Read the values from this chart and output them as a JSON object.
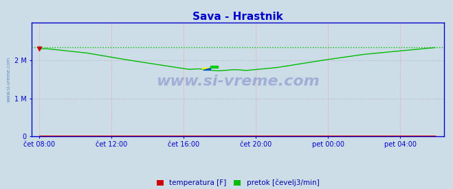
{
  "title": "Sava - Hrastnik",
  "title_color": "#0000cc",
  "bg_color": "#ccdde8",
  "plot_bg_color": "#ccdde8",
  "ylabel_color": "#0000aa",
  "xlabel_color": "#0000aa",
  "axis_color": "#0000cc",
  "grid_color_h": "#aaaaaa",
  "grid_color_v": "#ff8888",
  "yticks": [
    0,
    1000000,
    2000000
  ],
  "ytick_labels": [
    "0",
    "1 M",
    "2 M"
  ],
  "ylim": [
    0,
    3000000
  ],
  "xtick_labels": [
    "čet 08:00",
    "čet 12:00",
    "čet 16:00",
    "čet 20:00",
    "pet 00:00",
    "pet 04:00"
  ],
  "xtick_positions": [
    0,
    48,
    96,
    144,
    192,
    240
  ],
  "total_points": 264,
  "dotted_line_value": 2350000,
  "arrow_color": "#cc0000",
  "line_color_green": "#00bb00",
  "line_color_red": "#cc0000",
  "legend_items": [
    {
      "label": "temperatura [F]",
      "color": "#cc0000"
    },
    {
      "label": "pretok [čevelj3/min]",
      "color": "#00bb00"
    }
  ],
  "watermark": "www.si-vreme.com",
  "watermark_color": "#4444aa",
  "watermark_alpha": 0.3,
  "watermark_fontsize": 16
}
